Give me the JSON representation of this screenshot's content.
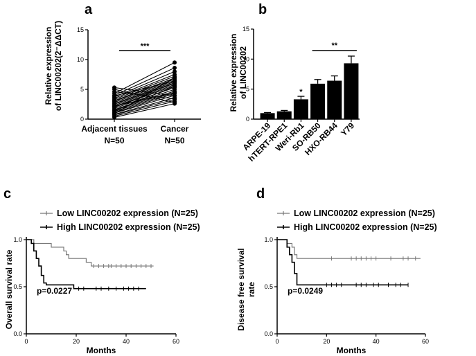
{
  "panels": {
    "a": "a",
    "b": "b",
    "c": "c",
    "d": "d"
  },
  "chart_data": [
    {
      "id": "a",
      "type": "paired_scatter",
      "ylabel_line1": "Relative expression",
      "ylabel_line2": "of LINC00202(2⁻ΔΔCT)",
      "ylim": [
        0,
        15
      ],
      "yticks": [
        "0",
        "5",
        "10",
        "15"
      ],
      "categories": [
        "Adjacent tissues",
        "Cancer"
      ],
      "category_n": [
        "N=50",
        "N=50"
      ],
      "significance": "***",
      "pairs": [
        [
          0.3,
          2.6
        ],
        [
          0.5,
          3.0
        ],
        [
          0.7,
          3.3
        ],
        [
          0.8,
          3.6
        ],
        [
          1.0,
          4.0
        ],
        [
          1.1,
          4.3
        ],
        [
          1.3,
          4.5
        ],
        [
          1.5,
          4.7
        ],
        [
          1.6,
          5.0
        ],
        [
          1.8,
          5.3
        ],
        [
          2.0,
          5.6
        ],
        [
          2.1,
          5.8
        ],
        [
          2.3,
          6.0
        ],
        [
          2.5,
          6.1
        ],
        [
          2.6,
          6.3
        ],
        [
          2.8,
          6.5
        ],
        [
          3.0,
          6.7
        ],
        [
          3.1,
          6.9
        ],
        [
          3.3,
          7.2
        ],
        [
          3.5,
          7.5
        ],
        [
          3.7,
          8.0
        ],
        [
          4.0,
          8.6
        ],
        [
          4.3,
          9.5
        ],
        [
          4.6,
          3.4
        ],
        [
          5.0,
          2.8
        ],
        [
          5.3,
          3.9
        ],
        [
          0.9,
          7.0
        ],
        [
          2.2,
          4.4
        ],
        [
          3.9,
          6.4
        ],
        [
          1.4,
          5.5
        ]
      ]
    },
    {
      "id": "b",
      "type": "bar",
      "ylabel_line1": "Relative expression",
      "ylabel_line2": "of LINC00202",
      "ylim": [
        0,
        15
      ],
      "yticks": [
        "0",
        "5",
        "10",
        "15"
      ],
      "categories": [
        "ARPE-19",
        "hTERT-RPE1",
        "Weri-Rb1",
        "SO-RB50",
        "HXO-RB44",
        "Y79"
      ],
      "values": [
        1.0,
        1.3,
        3.3,
        5.9,
        6.4,
        9.3
      ],
      "errors": [
        0.1,
        0.15,
        0.5,
        0.7,
        0.8,
        1.2
      ],
      "single_marker": {
        "category": "Weri-Rb1",
        "label": "*"
      },
      "bracket": {
        "from": "SO-RB50",
        "to": "Y79",
        "label": "**"
      }
    },
    {
      "id": "c",
      "type": "kaplan_meier",
      "ylabel": "Overall survival rate",
      "xlabel": "Months",
      "xlim": [
        0,
        60
      ],
      "ylim": [
        0,
        1.0
      ],
      "xticks": [
        "0",
        "20",
        "40",
        "60"
      ],
      "yticks": [
        "0.0",
        "0.5",
        "1.0"
      ],
      "pvalue": "p=0.0227",
      "series": [
        {
          "name": "Low LINC00202 expression (N=25)",
          "color": "#777777",
          "steps": [
            [
              0,
              1.0
            ],
            [
              3,
              0.96
            ],
            [
              10,
              0.92
            ],
            [
              15,
              0.88
            ],
            [
              16,
              0.84
            ],
            [
              17,
              0.8
            ],
            [
              24,
              0.76
            ],
            [
              26,
              0.72
            ],
            [
              51,
              0.72
            ]
          ],
          "censors": [
            27,
            29,
            31,
            33,
            34,
            36,
            38,
            40,
            42,
            44,
            46,
            48,
            50
          ]
        },
        {
          "name": "High LINC00202 expression (N=25)",
          "color": "#000000",
          "steps": [
            [
              0,
              1.0
            ],
            [
              2,
              0.96
            ],
            [
              3,
              0.88
            ],
            [
              4,
              0.8
            ],
            [
              5,
              0.72
            ],
            [
              6,
              0.62
            ],
            [
              7,
              0.54
            ],
            [
              8,
              0.52
            ],
            [
              19,
              0.48
            ],
            [
              48,
              0.48
            ]
          ],
          "censors": [
            21,
            23,
            28,
            30,
            33,
            36,
            39,
            41,
            43,
            45
          ]
        }
      ]
    },
    {
      "id": "d",
      "type": "kaplan_meier",
      "ylabel_line1": "Disease free survival",
      "ylabel_line2": "rate",
      "xlabel": "Months",
      "xlim": [
        0,
        60
      ],
      "ylim": [
        0,
        1.0
      ],
      "xticks": [
        "0",
        "20",
        "40",
        "60"
      ],
      "yticks": [
        "0.0",
        "0.5",
        "1.0"
      ],
      "pvalue": "p=0.0249",
      "series": [
        {
          "name": "Low LINC00202 expression (N=25)",
          "color": "#777777",
          "steps": [
            [
              0,
              1.0
            ],
            [
              4,
              0.96
            ],
            [
              6,
              0.92
            ],
            [
              7,
              0.84
            ],
            [
              8,
              0.8
            ],
            [
              58,
              0.8
            ]
          ],
          "censors": [
            22,
            30,
            32,
            34,
            36,
            38,
            40,
            46,
            51,
            53,
            56
          ]
        },
        {
          "name": "High LINC00202 expression (N=25)",
          "color": "#000000",
          "steps": [
            [
              0,
              1.0
            ],
            [
              4,
              0.92
            ],
            [
              5,
              0.84
            ],
            [
              6,
              0.76
            ],
            [
              7,
              0.64
            ],
            [
              8,
              0.52
            ],
            [
              53,
              0.52
            ]
          ],
          "censors": [
            20,
            22,
            24,
            26,
            32,
            34,
            36,
            39,
            41,
            45,
            48,
            50,
            53
          ]
        }
      ]
    }
  ]
}
